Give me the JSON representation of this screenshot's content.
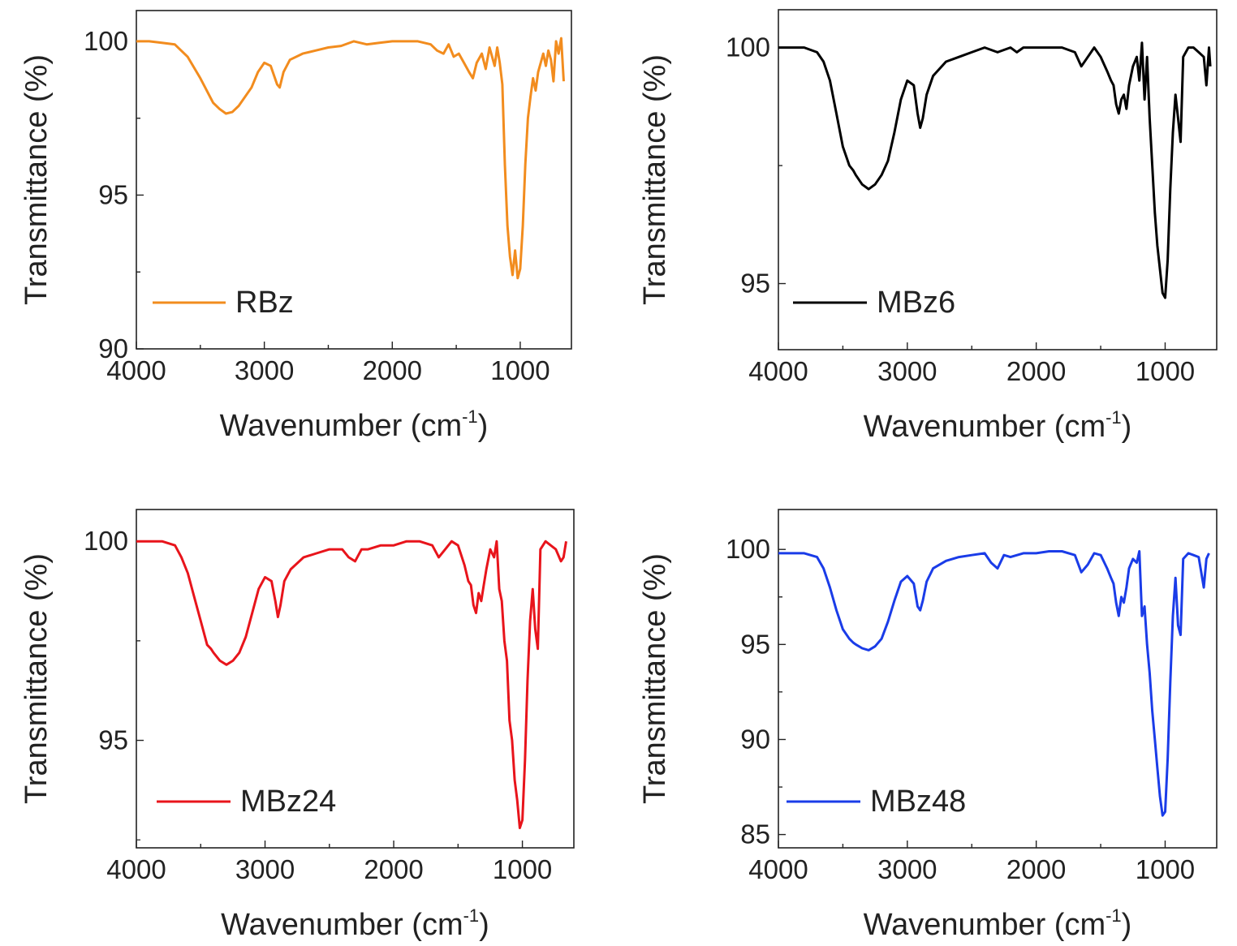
{
  "figure": {
    "xlabel_main": "Wavenumber (cm",
    "xlabel_sup": "-1",
    "xlabel_close": ")",
    "ylabel": "Transmittance (%)"
  },
  "chart_data": [
    {
      "type": "line",
      "xlabel": "Wavenumber (cm-1)",
      "ylabel": "Transmittance (%)",
      "xlim": [
        4000,
        600
      ],
      "ylim": [
        90,
        101
      ],
      "xticks": [
        4000,
        3000,
        2000,
        1000
      ],
      "yticks": [
        90,
        95,
        100
      ],
      "legend_position": "bottom-left",
      "series": [
        {
          "name": "RBz",
          "color": "#F28C1E",
          "x": [
            4000,
            3900,
            3800,
            3700,
            3600,
            3500,
            3450,
            3400,
            3350,
            3300,
            3250,
            3200,
            3100,
            3050,
            3000,
            2950,
            2900,
            2880,
            2850,
            2800,
            2700,
            2600,
            2500,
            2400,
            2300,
            2200,
            2100,
            2000,
            1900,
            1800,
            1700,
            1650,
            1600,
            1560,
            1520,
            1480,
            1440,
            1400,
            1370,
            1340,
            1300,
            1270,
            1240,
            1200,
            1180,
            1160,
            1140,
            1120,
            1100,
            1080,
            1060,
            1040,
            1020,
            1000,
            980,
            960,
            940,
            920,
            900,
            880,
            860,
            840,
            820,
            800,
            780,
            760,
            740,
            720,
            700,
            680,
            660
          ],
          "y": [
            100.0,
            100.0,
            99.95,
            99.9,
            99.5,
            98.8,
            98.4,
            98.0,
            97.8,
            97.65,
            97.7,
            97.9,
            98.5,
            99.0,
            99.3,
            99.2,
            98.6,
            98.5,
            99.0,
            99.4,
            99.6,
            99.7,
            99.8,
            99.85,
            100.0,
            99.9,
            99.95,
            100.0,
            100.0,
            100.0,
            99.9,
            99.7,
            99.6,
            99.9,
            99.5,
            99.6,
            99.3,
            99.0,
            98.8,
            99.3,
            99.6,
            99.1,
            99.8,
            99.2,
            99.8,
            99.3,
            98.6,
            96.0,
            94.0,
            93.0,
            92.4,
            93.2,
            92.3,
            92.6,
            94.0,
            96.0,
            97.5,
            98.2,
            98.8,
            98.4,
            99.0,
            99.3,
            99.6,
            99.2,
            99.7,
            99.4,
            98.7,
            100.0,
            99.6,
            100.1,
            98.7
          ]
        }
      ]
    },
    {
      "type": "line",
      "xlabel": "Wavenumber (cm-1)",
      "ylabel": "Transmittance (%)",
      "xlim": [
        4000,
        600
      ],
      "ylim": [
        93.6,
        100.8
      ],
      "xticks": [
        4000,
        3000,
        2000,
        1000
      ],
      "yticks": [
        95,
        100
      ],
      "legend_position": "bottom-left",
      "series": [
        {
          "name": "MBz6",
          "color": "#000000",
          "x": [
            4000,
            3800,
            3700,
            3650,
            3600,
            3550,
            3500,
            3450,
            3420,
            3400,
            3350,
            3300,
            3250,
            3200,
            3150,
            3100,
            3050,
            3000,
            2950,
            2920,
            2900,
            2880,
            2850,
            2800,
            2700,
            2600,
            2500,
            2400,
            2300,
            2200,
            2150,
            2100,
            2000,
            1900,
            1800,
            1700,
            1650,
            1600,
            1550,
            1500,
            1450,
            1420,
            1400,
            1380,
            1360,
            1340,
            1320,
            1300,
            1280,
            1250,
            1220,
            1200,
            1180,
            1160,
            1140,
            1120,
            1100,
            1080,
            1060,
            1040,
            1020,
            1000,
            980,
            960,
            940,
            920,
            900,
            880,
            860,
            820,
            780,
            740,
            700,
            680,
            660,
            650
          ],
          "y": [
            100.0,
            100.0,
            99.9,
            99.7,
            99.3,
            98.6,
            97.9,
            97.5,
            97.4,
            97.3,
            97.1,
            97.0,
            97.1,
            97.3,
            97.6,
            98.2,
            98.9,
            99.3,
            99.2,
            98.6,
            98.3,
            98.5,
            99.0,
            99.4,
            99.7,
            99.8,
            99.9,
            100.0,
            99.9,
            100.0,
            99.9,
            100.0,
            100.0,
            100.0,
            100.0,
            99.9,
            99.6,
            99.8,
            100.0,
            99.8,
            99.5,
            99.3,
            99.2,
            98.8,
            98.6,
            98.9,
            99.0,
            98.7,
            99.2,
            99.6,
            99.8,
            99.3,
            100.1,
            98.9,
            99.8,
            98.5,
            97.5,
            96.5,
            95.8,
            95.3,
            94.8,
            94.7,
            95.5,
            97.0,
            98.2,
            99.0,
            98.5,
            98.0,
            99.8,
            100.0,
            100.0,
            99.9,
            99.8,
            99.2,
            100.0,
            99.6
          ]
        }
      ]
    },
    {
      "type": "line",
      "xlabel": "Wavenumber (cm-1)",
      "ylabel": "Transmittance (%)",
      "xlim": [
        4000,
        600
      ],
      "ylim": [
        92.3,
        100.8
      ],
      "xticks": [
        4000,
        3000,
        2000,
        1000
      ],
      "yticks": [
        95,
        100
      ],
      "legend_position": "bottom-left",
      "series": [
        {
          "name": "MBz24",
          "color": "#E8141B",
          "x": [
            4000,
            3800,
            3700,
            3650,
            3600,
            3550,
            3500,
            3450,
            3420,
            3400,
            3350,
            3300,
            3250,
            3200,
            3150,
            3100,
            3050,
            3000,
            2950,
            2920,
            2900,
            2880,
            2850,
            2800,
            2700,
            2600,
            2500,
            2400,
            2350,
            2300,
            2250,
            2200,
            2100,
            2000,
            1900,
            1800,
            1700,
            1650,
            1600,
            1550,
            1500,
            1450,
            1420,
            1400,
            1380,
            1360,
            1340,
            1320,
            1300,
            1280,
            1250,
            1220,
            1200,
            1180,
            1160,
            1140,
            1120,
            1100,
            1080,
            1060,
            1040,
            1020,
            1000,
            980,
            960,
            940,
            920,
            900,
            880,
            860,
            820,
            780,
            740,
            700,
            680,
            660
          ],
          "y": [
            100.0,
            100.0,
            99.9,
            99.6,
            99.2,
            98.6,
            98.0,
            97.4,
            97.3,
            97.2,
            97.0,
            96.9,
            97.0,
            97.2,
            97.6,
            98.2,
            98.8,
            99.1,
            99.0,
            98.5,
            98.1,
            98.4,
            99.0,
            99.3,
            99.6,
            99.7,
            99.8,
            99.8,
            99.6,
            99.5,
            99.8,
            99.8,
            99.9,
            99.9,
            100.0,
            100.0,
            99.9,
            99.6,
            99.8,
            100.0,
            99.9,
            99.4,
            99.0,
            98.9,
            98.4,
            98.2,
            98.7,
            98.5,
            98.9,
            99.3,
            99.8,
            99.6,
            100.0,
            98.8,
            98.5,
            97.5,
            97.0,
            95.5,
            95.0,
            94.0,
            93.5,
            92.8,
            93.0,
            94.5,
            96.5,
            98.0,
            98.8,
            97.8,
            97.3,
            99.8,
            100.0,
            99.9,
            99.8,
            99.5,
            99.6,
            100.0
          ]
        }
      ]
    },
    {
      "type": "line",
      "xlabel": "Wavenumber (cm-1)",
      "ylabel": "Transmittance (%)",
      "xlim": [
        4000,
        600
      ],
      "ylim": [
        84.3,
        102.1
      ],
      "xticks": [
        4000,
        3000,
        2000,
        1000
      ],
      "yticks": [
        85,
        90,
        95,
        100
      ],
      "legend_position": "bottom-left",
      "series": [
        {
          "name": "MBz48",
          "color": "#1A3CE8",
          "x": [
            4000,
            3800,
            3700,
            3650,
            3600,
            3550,
            3500,
            3450,
            3420,
            3400,
            3350,
            3300,
            3250,
            3200,
            3150,
            3100,
            3050,
            3000,
            2950,
            2920,
            2900,
            2880,
            2850,
            2800,
            2700,
            2600,
            2500,
            2400,
            2350,
            2300,
            2250,
            2200,
            2100,
            2000,
            1900,
            1800,
            1700,
            1650,
            1600,
            1550,
            1500,
            1450,
            1420,
            1400,
            1380,
            1360,
            1340,
            1320,
            1300,
            1280,
            1250,
            1220,
            1200,
            1180,
            1160,
            1140,
            1120,
            1100,
            1080,
            1060,
            1040,
            1020,
            1000,
            980,
            960,
            940,
            920,
            900,
            880,
            860,
            820,
            780,
            740,
            700,
            680,
            660
          ],
          "y": [
            99.8,
            99.8,
            99.6,
            99.0,
            98.0,
            96.8,
            95.8,
            95.3,
            95.1,
            95.0,
            94.8,
            94.7,
            94.9,
            95.3,
            96.2,
            97.3,
            98.3,
            98.6,
            98.2,
            97.0,
            96.8,
            97.3,
            98.3,
            99.0,
            99.4,
            99.6,
            99.7,
            99.8,
            99.3,
            99.0,
            99.7,
            99.6,
            99.8,
            99.8,
            99.9,
            99.9,
            99.7,
            98.8,
            99.2,
            99.8,
            99.7,
            99.0,
            98.5,
            98.2,
            97.2,
            96.5,
            97.5,
            97.2,
            98.0,
            99.0,
            99.5,
            99.3,
            99.9,
            96.5,
            97.0,
            95.0,
            93.5,
            91.5,
            90.0,
            88.5,
            87.0,
            86.0,
            86.2,
            89.0,
            93.0,
            96.5,
            98.5,
            96.0,
            95.5,
            99.5,
            99.8,
            99.7,
            99.6,
            98.0,
            99.5,
            99.8
          ]
        }
      ]
    }
  ]
}
